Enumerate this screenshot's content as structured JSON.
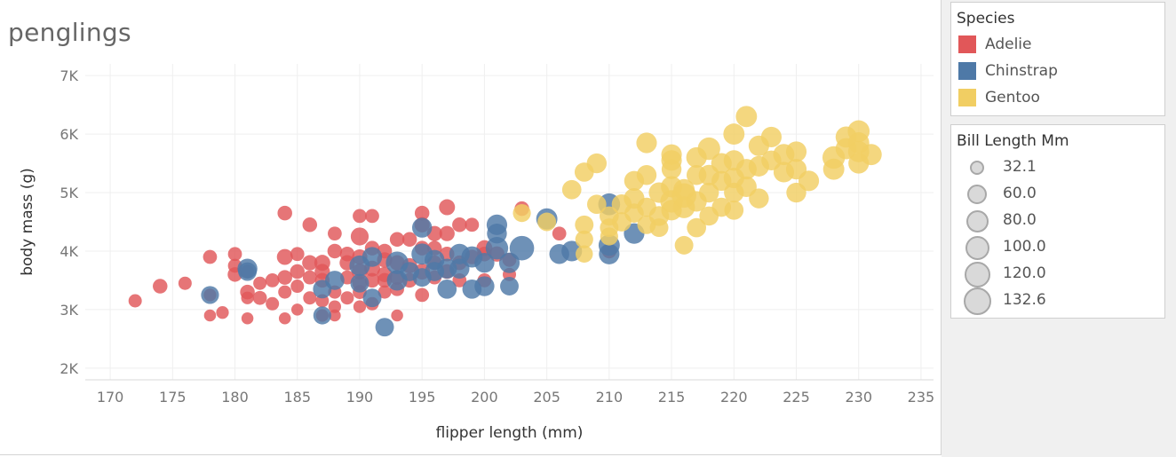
{
  "chart_data": {
    "type": "scatter",
    "title": "penglings",
    "xlabel": "flipper length (mm)",
    "ylabel": "body mass (g)",
    "xlim": [
      168,
      236
    ],
    "ylim": [
      1800,
      7200
    ],
    "x_ticks": [
      170,
      175,
      180,
      185,
      190,
      195,
      200,
      205,
      210,
      215,
      220,
      225,
      230,
      235
    ],
    "y_ticks": [
      {
        "value": 2000,
        "label": "2K"
      },
      {
        "value": 3000,
        "label": "3K"
      },
      {
        "value": 4000,
        "label": "4K"
      },
      {
        "value": 5000,
        "label": "5K"
      },
      {
        "value": 6000,
        "label": "6K"
      },
      {
        "value": 7000,
        "label": "7K"
      }
    ],
    "grid": true,
    "size_encoding": "Bill Length Mm",
    "series": [
      {
        "name": "Adelie",
        "color": "#e15759",
        "points": [
          [
            172,
            3150,
            38
          ],
          [
            174,
            3400,
            40
          ],
          [
            176,
            3450,
            38
          ],
          [
            178,
            3250,
            37
          ],
          [
            178,
            3900,
            39
          ],
          [
            178,
            2900,
            36
          ],
          [
            179,
            2950,
            37
          ],
          [
            180,
            3950,
            39
          ],
          [
            180,
            3750,
            39
          ],
          [
            180,
            3600,
            40
          ],
          [
            181,
            3650,
            38
          ],
          [
            181,
            3300,
            40
          ],
          [
            181,
            2850,
            36
          ],
          [
            181,
            3200,
            37
          ],
          [
            182,
            3450,
            38
          ],
          [
            182,
            3200,
            39
          ],
          [
            183,
            3500,
            39
          ],
          [
            183,
            3100,
            38
          ],
          [
            184,
            3900,
            42
          ],
          [
            184,
            3300,
            38
          ],
          [
            184,
            3550,
            40
          ],
          [
            184,
            2850,
            36
          ],
          [
            184,
            4650,
            40
          ],
          [
            185,
            3650,
            40
          ],
          [
            185,
            3950,
            39
          ],
          [
            185,
            3400,
            38
          ],
          [
            185,
            3000,
            36
          ],
          [
            186,
            3800,
            41
          ],
          [
            186,
            3550,
            39
          ],
          [
            186,
            3200,
            38
          ],
          [
            186,
            4450,
            40
          ],
          [
            187,
            3800,
            42
          ],
          [
            187,
            3500,
            40
          ],
          [
            187,
            3150,
            38
          ],
          [
            187,
            2900,
            37
          ],
          [
            187,
            3650,
            41
          ],
          [
            188,
            3300,
            38
          ],
          [
            188,
            3050,
            37
          ],
          [
            188,
            4000,
            40
          ],
          [
            188,
            4300,
            39
          ],
          [
            188,
            2900,
            36
          ],
          [
            189,
            3550,
            39
          ],
          [
            189,
            3950,
            40
          ],
          [
            189,
            3200,
            38
          ],
          [
            189,
            3800,
            41
          ],
          [
            190,
            4250,
            45
          ],
          [
            190,
            3650,
            42
          ],
          [
            190,
            3450,
            40
          ],
          [
            190,
            3900,
            41
          ],
          [
            190,
            3050,
            37
          ],
          [
            190,
            4600,
            39
          ],
          [
            190,
            3300,
            39
          ],
          [
            191,
            4050,
            40
          ],
          [
            191,
            3700,
            42
          ],
          [
            191,
            3500,
            40
          ],
          [
            191,
            4600,
            39
          ],
          [
            191,
            3100,
            38
          ],
          [
            192,
            3850,
            41
          ],
          [
            192,
            3500,
            40
          ],
          [
            192,
            4000,
            40
          ],
          [
            192,
            3300,
            38
          ],
          [
            192,
            3600,
            41
          ],
          [
            193,
            4200,
            40
          ],
          [
            193,
            3800,
            41
          ],
          [
            193,
            2900,
            36
          ],
          [
            193,
            3550,
            40
          ],
          [
            193,
            3350,
            39
          ],
          [
            194,
            4200,
            40
          ],
          [
            194,
            3750,
            41
          ],
          [
            194,
            3500,
            40
          ],
          [
            195,
            4450,
            41
          ],
          [
            195,
            4050,
            40
          ],
          [
            195,
            3650,
            42
          ],
          [
            195,
            3250,
            39
          ],
          [
            195,
            4650,
            40
          ],
          [
            196,
            4300,
            41
          ],
          [
            196,
            3800,
            40
          ],
          [
            196,
            3550,
            39
          ],
          [
            196,
            4050,
            40
          ],
          [
            197,
            4750,
            42
          ],
          [
            197,
            4300,
            41
          ],
          [
            197,
            3950,
            40
          ],
          [
            197,
            3650,
            40
          ],
          [
            198,
            4450,
            40
          ],
          [
            198,
            3800,
            40
          ],
          [
            198,
            3500,
            39
          ],
          [
            199,
            4450,
            39
          ],
          [
            199,
            3900,
            40
          ],
          [
            200,
            3950,
            40
          ],
          [
            200,
            3500,
            39
          ],
          [
            200,
            4050,
            42
          ],
          [
            201,
            3950,
            41
          ],
          [
            202,
            3850,
            39
          ],
          [
            202,
            3600,
            38
          ],
          [
            203,
            4725,
            40
          ],
          [
            206,
            4300,
            39
          ],
          [
            210,
            4000,
            40
          ]
        ]
      },
      {
        "name": "Chinstrap",
        "color": "#4e79a7",
        "points": [
          [
            178,
            3250,
            45
          ],
          [
            181,
            3700,
            48
          ],
          [
            181,
            3650,
            46
          ],
          [
            187,
            3350,
            46
          ],
          [
            187,
            2900,
            45
          ],
          [
            188,
            3500,
            47
          ],
          [
            190,
            3750,
            49
          ],
          [
            190,
            3450,
            46
          ],
          [
            191,
            3900,
            48
          ],
          [
            191,
            3200,
            46
          ],
          [
            192,
            2700,
            46
          ],
          [
            193,
            3800,
            52
          ],
          [
            193,
            3500,
            49
          ],
          [
            194,
            3650,
            47
          ],
          [
            195,
            4400,
            48
          ],
          [
            195,
            3950,
            50
          ],
          [
            195,
            3550,
            46
          ],
          [
            196,
            3850,
            48
          ],
          [
            196,
            3650,
            47
          ],
          [
            197,
            3700,
            48
          ],
          [
            197,
            3350,
            47
          ],
          [
            198,
            3950,
            49
          ],
          [
            198,
            3700,
            48
          ],
          [
            199,
            3900,
            50
          ],
          [
            199,
            3350,
            47
          ],
          [
            200,
            3800,
            48
          ],
          [
            200,
            3400,
            48
          ],
          [
            201,
            4450,
            49
          ],
          [
            201,
            4300,
            48
          ],
          [
            201,
            4050,
            52
          ],
          [
            202,
            3800,
            49
          ],
          [
            202,
            3400,
            46
          ],
          [
            203,
            4050,
            55
          ],
          [
            205,
            4550,
            50
          ],
          [
            206,
            3950,
            48
          ],
          [
            207,
            4000,
            49
          ],
          [
            210,
            4100,
            50
          ],
          [
            210,
            4800,
            51
          ],
          [
            212,
            4300,
            49
          ],
          [
            210,
            3950,
            49
          ]
        ]
      },
      {
        "name": "Gentoo",
        "color": "#f1ce63",
        "points": [
          [
            203,
            4650,
            45
          ],
          [
            205,
            4500,
            46
          ],
          [
            207,
            5050,
            47
          ],
          [
            208,
            4450,
            46
          ],
          [
            208,
            4200,
            45
          ],
          [
            208,
            3950,
            44
          ],
          [
            208,
            5350,
            47
          ],
          [
            209,
            5500,
            48
          ],
          [
            209,
            4800,
            47
          ],
          [
            210,
            4400,
            46
          ],
          [
            210,
            4600,
            47
          ],
          [
            210,
            4250,
            45
          ],
          [
            211,
            4800,
            48
          ],
          [
            211,
            4500,
            47
          ],
          [
            212,
            5200,
            48
          ],
          [
            212,
            4650,
            47
          ],
          [
            212,
            4900,
            49
          ],
          [
            213,
            5850,
            49
          ],
          [
            213,
            5300,
            48
          ],
          [
            213,
            4750,
            47
          ],
          [
            213,
            4450,
            46
          ],
          [
            214,
            5000,
            49
          ],
          [
            214,
            4600,
            48
          ],
          [
            214,
            4400,
            46
          ],
          [
            215,
            5650,
            49
          ],
          [
            215,
            5400,
            48
          ],
          [
            215,
            5100,
            50
          ],
          [
            215,
            4850,
            52
          ],
          [
            215,
            4700,
            49
          ],
          [
            215,
            5550,
            49
          ],
          [
            216,
            5050,
            50
          ],
          [
            216,
            4750,
            51
          ],
          [
            216,
            4950,
            55
          ],
          [
            216,
            4100,
            46
          ],
          [
            217,
            5600,
            49
          ],
          [
            217,
            5300,
            48
          ],
          [
            217,
            4400,
            47
          ],
          [
            217,
            4850,
            49
          ],
          [
            218,
            5750,
            52
          ],
          [
            218,
            5300,
            49
          ],
          [
            218,
            5000,
            48
          ],
          [
            218,
            4600,
            47
          ],
          [
            219,
            5500,
            49
          ],
          [
            219,
            5200,
            48
          ],
          [
            219,
            4750,
            47
          ],
          [
            220,
            6000,
            50
          ],
          [
            220,
            5550,
            49
          ],
          [
            220,
            5250,
            49
          ],
          [
            220,
            5000,
            48
          ],
          [
            220,
            4700,
            47
          ],
          [
            221,
            6300,
            50
          ],
          [
            221,
            5400,
            49
          ],
          [
            221,
            5100,
            49
          ],
          [
            222,
            5800,
            49
          ],
          [
            222,
            5450,
            49
          ],
          [
            222,
            4900,
            48
          ],
          [
            223,
            5950,
            49
          ],
          [
            223,
            5550,
            48
          ],
          [
            224,
            5650,
            50
          ],
          [
            224,
            5350,
            49
          ],
          [
            225,
            5700,
            49
          ],
          [
            225,
            5000,
            48
          ],
          [
            225,
            5400,
            49
          ],
          [
            226,
            5200,
            49
          ],
          [
            228,
            5600,
            52
          ],
          [
            228,
            5400,
            50
          ],
          [
            229,
            5950,
            50
          ],
          [
            229,
            5750,
            50
          ],
          [
            230,
            6050,
            51
          ],
          [
            230,
            5700,
            50
          ],
          [
            230,
            5500,
            49
          ],
          [
            230,
            5850,
            50
          ],
          [
            231,
            5650,
            50
          ]
        ]
      }
    ]
  },
  "legend_species": {
    "title": "Species",
    "items": [
      {
        "label": "Adelie",
        "color": "#e15759"
      },
      {
        "label": "Chinstrap",
        "color": "#4e79a7"
      },
      {
        "label": "Gentoo",
        "color": "#f1ce63"
      }
    ]
  },
  "legend_size": {
    "title": "Bill Length Mm",
    "items": [
      {
        "label": "32.1",
        "value": 32.1
      },
      {
        "label": "60.0",
        "value": 60.0
      },
      {
        "label": "80.0",
        "value": 80.0
      },
      {
        "label": "100.0",
        "value": 100.0
      },
      {
        "label": "120.0",
        "value": 120.0
      },
      {
        "label": "132.6",
        "value": 132.6
      }
    ]
  }
}
